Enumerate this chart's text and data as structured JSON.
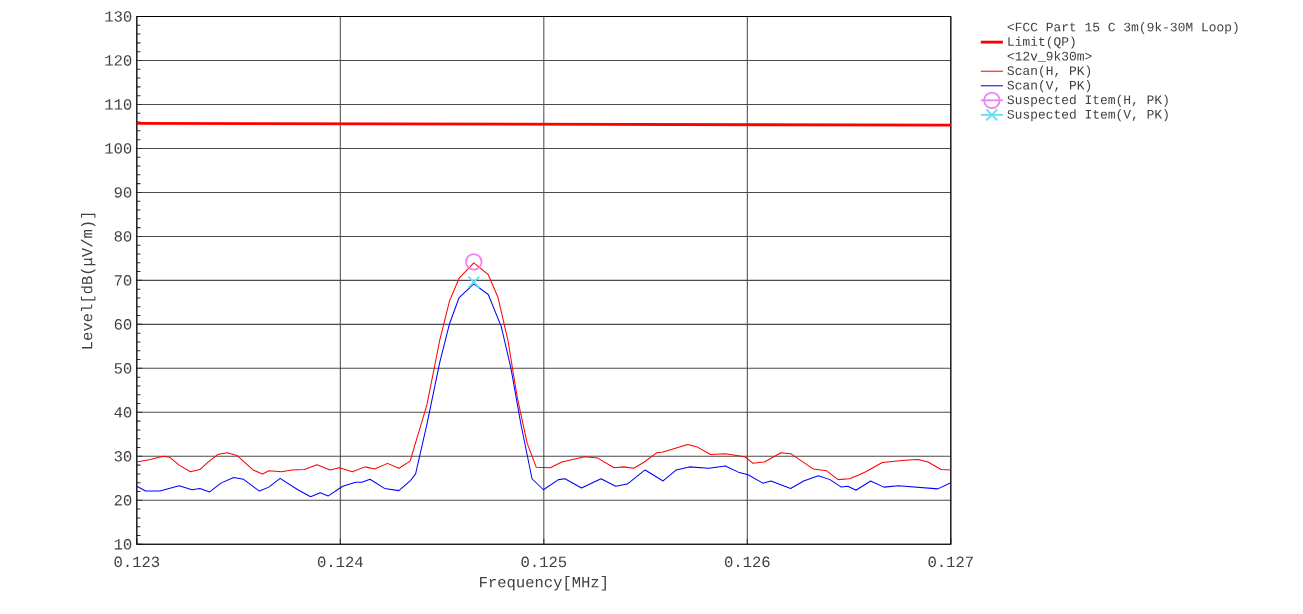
{
  "chart_data": {
    "type": "line",
    "xlabel": "Frequency[MHz]",
    "ylabel": "Level[dB(μV/m)]",
    "legend_title": "<FCC Part 15 C 3m(9k-30M  Loop)",
    "annotations": [
      "<12v_9k30m>"
    ],
    "xlim": [
      0.123,
      0.127
    ],
    "xticks": [
      0.123,
      0.124,
      0.125,
      0.126,
      0.127
    ],
    "ylim": [
      10,
      130
    ],
    "yticks": [
      10,
      20,
      30,
      40,
      50,
      60,
      70,
      80,
      90,
      100,
      110,
      120,
      130
    ],
    "grid": true,
    "legend": "right",
    "marker": "none",
    "series": [
      {
        "name": "Limit(QP)",
        "color": "#ff0000",
        "x": [
          0.123,
          0.127
        ],
        "values": [
          105.7,
          105.3
        ]
      },
      {
        "name": "Scan(H, PK)",
        "color": "#ff0000",
        "x": [
          0.123,
          0.123066,
          0.123129,
          0.123161,
          0.123208,
          0.123263,
          0.12331,
          0.12335,
          0.123397,
          0.123444,
          0.123492,
          0.123571,
          0.123618,
          0.123649,
          0.123712,
          0.12376,
          0.123823,
          0.123886,
          0.123949,
          0.123996,
          0.124059,
          0.124122,
          0.124169,
          0.124232,
          0.124288,
          0.124343,
          0.124426,
          0.124489,
          0.124537,
          0.124584,
          0.124656,
          0.124727,
          0.124775,
          0.124823,
          0.12487,
          0.124918,
          0.124963,
          0.125032,
          0.125088,
          0.125201,
          0.125265,
          0.125345,
          0.125394,
          0.125442,
          0.12549,
          0.125554,
          0.125586,
          0.125707,
          0.125755,
          0.125819,
          0.125892,
          0.125988,
          0.126028,
          0.126084,
          0.126165,
          0.126213,
          0.126325,
          0.12639,
          0.126446,
          0.126502,
          0.12655,
          0.126582,
          0.126663,
          0.126775,
          0.126839,
          0.126888,
          0.126952,
          0.127
        ],
        "values": [
          28.7,
          29.3,
          30.0,
          29.8,
          28.0,
          26.5,
          27.0,
          28.7,
          30.4,
          30.8,
          30.2,
          26.9,
          26.0,
          26.7,
          26.5,
          26.9,
          27.0,
          28.1,
          26.9,
          27.4,
          26.5,
          27.6,
          27.1,
          28.4,
          27.3,
          28.9,
          41.8,
          56.5,
          65.4,
          70.5,
          74.0,
          71.3,
          66.1,
          56.5,
          43.3,
          33.0,
          27.5,
          27.4,
          28.7,
          29.9,
          29.6,
          27.4,
          27.6,
          27.3,
          28.6,
          30.8,
          31.0,
          32.7,
          32.1,
          30.4,
          30.6,
          29.9,
          28.4,
          28.7,
          30.8,
          30.6,
          27.1,
          26.7,
          24.7,
          24.9,
          25.8,
          26.5,
          28.6,
          29.1,
          29.3,
          28.7,
          27.0,
          26.9
        ]
      },
      {
        "name": "Scan(V, PK)",
        "color": "#0000ff",
        "x": [
          0.123,
          0.123043,
          0.123113,
          0.123208,
          0.123271,
          0.12331,
          0.123358,
          0.123413,
          0.123476,
          0.123523,
          0.123602,
          0.123649,
          0.123704,
          0.123791,
          0.123854,
          0.123901,
          0.123941,
          0.124012,
          0.124075,
          0.124106,
          0.124146,
          0.124217,
          0.124288,
          0.124343,
          0.12437,
          0.124426,
          0.124489,
          0.124537,
          0.124584,
          0.124656,
          0.124727,
          0.124791,
          0.124839,
          0.124887,
          0.124942,
          0.124998,
          0.125072,
          0.125104,
          0.125185,
          0.125281,
          0.125353,
          0.12541,
          0.125498,
          0.125586,
          0.125651,
          0.125715,
          0.125811,
          0.125892,
          0.125956,
          0.126004,
          0.126076,
          0.126116,
          0.126213,
          0.126277,
          0.126349,
          0.126406,
          0.126462,
          0.126494,
          0.126534,
          0.126606,
          0.126671,
          0.126743,
          0.126936,
          0.127
        ],
        "values": [
          23.2,
          22.1,
          22.1,
          23.3,
          22.4,
          22.7,
          21.9,
          23.9,
          25.2,
          24.8,
          22.1,
          23.0,
          25.0,
          22.4,
          20.8,
          21.7,
          21.0,
          23.2,
          24.1,
          24.1,
          24.8,
          22.7,
          22.2,
          24.4,
          26.0,
          37.4,
          51.4,
          60.2,
          66.1,
          69.2,
          66.8,
          59.5,
          49.9,
          37.4,
          24.9,
          22.4,
          24.7,
          24.9,
          22.8,
          24.9,
          23.2,
          23.7,
          26.9,
          24.4,
          26.9,
          27.6,
          27.3,
          27.8,
          26.4,
          25.8,
          23.9,
          24.4,
          22.7,
          24.4,
          25.6,
          24.7,
          23.0,
          23.2,
          22.3,
          24.4,
          23.0,
          23.3,
          22.6,
          24.0
        ]
      },
      {
        "name": "Suspected Item(H, PK)",
        "type": "scatter",
        "marker": "circle",
        "color": "#ee82ee",
        "x": [
          0.124656
        ],
        "values": [
          74.2
        ]
      },
      {
        "name": "Suspected Item(V, PK)",
        "type": "scatter",
        "marker": "cross",
        "color": "#66ddee",
        "x": [
          0.124656
        ],
        "values": [
          69.6
        ]
      }
    ]
  }
}
